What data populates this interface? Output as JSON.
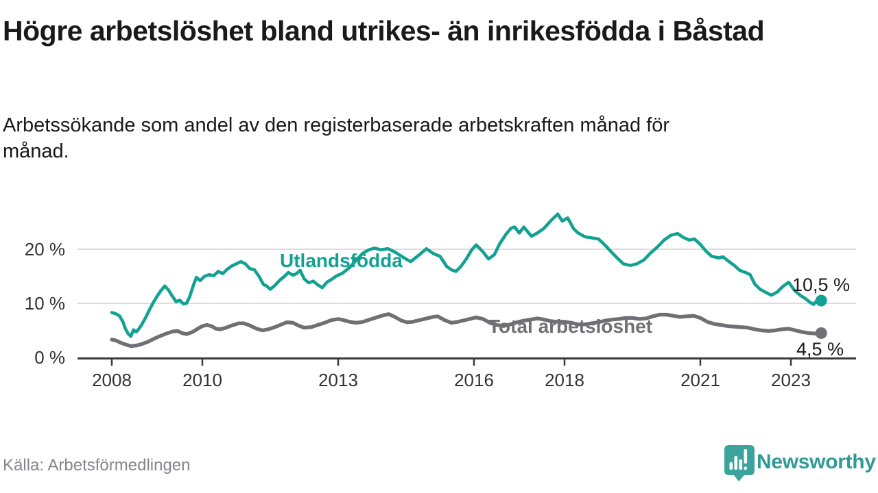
{
  "header": {
    "title": "Högre arbetslöshet bland utrikes- än inrikesfödda i Båstad",
    "subtitle": "Arbetssökande som andel av den registerbaserade arbetskraften månad för månad."
  },
  "footer": {
    "source": "Källa: Arbetsförmedlingen",
    "brand": "Newsworthy"
  },
  "colors": {
    "series_utlandsfodda": "#12a192",
    "series_total": "#6f6f74",
    "gridline": "#dcdcdc",
    "axis": "#3a3a3a",
    "tick_text": "#333333",
    "end_label_text": "#1a1a1a",
    "logo_bubble": "#3aa39c",
    "brand_text": "#2f9a96",
    "source_text": "#85858c"
  },
  "chart_data": {
    "type": "line",
    "title": "Högre arbetslöshet bland utrikes- än inrikesfödda i Båstad",
    "subtitle": "Arbetssökande som andel av den registerbaserade arbetskraften månad för månad.",
    "xlabel": "",
    "ylabel": "",
    "y_unit": "%",
    "grid": "horizontal",
    "legend": "inline-labels",
    "xlim": [
      2008,
      2023.9
    ],
    "ylim": [
      0,
      28
    ],
    "x_ticks": [
      2008,
      2010,
      2013,
      2016,
      2018,
      2021,
      2023
    ],
    "y_ticks": [
      {
        "value": 0,
        "label": "0 %"
      },
      {
        "value": 10,
        "label": "10 %"
      },
      {
        "value": 20,
        "label": "20 %"
      }
    ],
    "series": [
      {
        "name": "Utlandsfödda",
        "color": "#12a192",
        "end_label": "10,5 %",
        "end_value": 10.5,
        "points": [
          [
            2008.0,
            8.3
          ],
          [
            2008.08,
            8.1
          ],
          [
            2008.17,
            7.7
          ],
          [
            2008.25,
            6.5
          ],
          [
            2008.3,
            5.3
          ],
          [
            2008.36,
            4.4
          ],
          [
            2008.42,
            3.9
          ],
          [
            2008.48,
            5.1
          ],
          [
            2008.54,
            4.7
          ],
          [
            2008.6,
            5.3
          ],
          [
            2008.67,
            6.2
          ],
          [
            2008.75,
            7.4
          ],
          [
            2008.83,
            8.8
          ],
          [
            2008.92,
            10.2
          ],
          [
            2009.0,
            11.3
          ],
          [
            2009.08,
            12.3
          ],
          [
            2009.17,
            13.2
          ],
          [
            2009.25,
            12.5
          ],
          [
            2009.33,
            11.4
          ],
          [
            2009.42,
            10.3
          ],
          [
            2009.5,
            10.6
          ],
          [
            2009.58,
            9.9
          ],
          [
            2009.65,
            10.0
          ],
          [
            2009.72,
            11.2
          ],
          [
            2009.8,
            13.3
          ],
          [
            2009.87,
            14.8
          ],
          [
            2009.95,
            14.2
          ],
          [
            2010.05,
            15.0
          ],
          [
            2010.15,
            15.3
          ],
          [
            2010.25,
            15.1
          ],
          [
            2010.35,
            15.9
          ],
          [
            2010.45,
            15.5
          ],
          [
            2010.55,
            16.3
          ],
          [
            2010.65,
            16.9
          ],
          [
            2010.75,
            17.3
          ],
          [
            2010.85,
            17.7
          ],
          [
            2010.95,
            17.3
          ],
          [
            2011.05,
            16.4
          ],
          [
            2011.15,
            16.2
          ],
          [
            2011.25,
            15.0
          ],
          [
            2011.35,
            13.5
          ],
          [
            2011.42,
            13.2
          ],
          [
            2011.5,
            12.6
          ],
          [
            2011.6,
            13.3
          ],
          [
            2011.7,
            14.2
          ],
          [
            2011.8,
            14.9
          ],
          [
            2011.9,
            15.7
          ],
          [
            2012.0,
            15.2
          ],
          [
            2012.08,
            15.5
          ],
          [
            2012.16,
            16.1
          ],
          [
            2012.25,
            14.5
          ],
          [
            2012.35,
            13.8
          ],
          [
            2012.45,
            14.1
          ],
          [
            2012.55,
            13.4
          ],
          [
            2012.65,
            12.9
          ],
          [
            2012.75,
            13.9
          ],
          [
            2012.85,
            14.4
          ],
          [
            2012.95,
            15.0
          ],
          [
            2013.1,
            15.6
          ],
          [
            2013.25,
            16.6
          ],
          [
            2013.4,
            18.0
          ],
          [
            2013.55,
            19.3
          ],
          [
            2013.68,
            19.9
          ],
          [
            2013.8,
            20.2
          ],
          [
            2013.95,
            19.9
          ],
          [
            2014.1,
            20.1
          ],
          [
            2014.25,
            19.5
          ],
          [
            2014.42,
            18.6
          ],
          [
            2014.6,
            17.7
          ],
          [
            2014.78,
            18.9
          ],
          [
            2014.95,
            20.1
          ],
          [
            2015.1,
            19.2
          ],
          [
            2015.25,
            18.7
          ],
          [
            2015.4,
            16.8
          ],
          [
            2015.5,
            16.2
          ],
          [
            2015.6,
            15.9
          ],
          [
            2015.7,
            16.7
          ],
          [
            2015.83,
            18.2
          ],
          [
            2015.95,
            19.9
          ],
          [
            2016.05,
            20.8
          ],
          [
            2016.2,
            19.5
          ],
          [
            2016.32,
            18.2
          ],
          [
            2016.45,
            19.0
          ],
          [
            2016.56,
            20.9
          ],
          [
            2016.7,
            22.7
          ],
          [
            2016.82,
            23.9
          ],
          [
            2016.9,
            24.1
          ],
          [
            2017.0,
            23.0
          ],
          [
            2017.1,
            24.1
          ],
          [
            2017.27,
            22.4
          ],
          [
            2017.4,
            23.0
          ],
          [
            2017.55,
            23.9
          ],
          [
            2017.7,
            25.3
          ],
          [
            2017.85,
            26.5
          ],
          [
            2017.95,
            25.2
          ],
          [
            2018.07,
            25.8
          ],
          [
            2018.2,
            23.8
          ],
          [
            2018.3,
            23.0
          ],
          [
            2018.45,
            22.3
          ],
          [
            2018.6,
            22.1
          ],
          [
            2018.75,
            21.9
          ],
          [
            2018.9,
            20.7
          ],
          [
            2019.0,
            19.8
          ],
          [
            2019.15,
            18.5
          ],
          [
            2019.3,
            17.3
          ],
          [
            2019.45,
            17.0
          ],
          [
            2019.6,
            17.3
          ],
          [
            2019.75,
            18.0
          ],
          [
            2019.9,
            19.3
          ],
          [
            2020.05,
            20.4
          ],
          [
            2020.2,
            21.7
          ],
          [
            2020.35,
            22.6
          ],
          [
            2020.5,
            22.9
          ],
          [
            2020.62,
            22.2
          ],
          [
            2020.75,
            21.7
          ],
          [
            2020.87,
            21.9
          ],
          [
            2021.0,
            20.9
          ],
          [
            2021.12,
            19.7
          ],
          [
            2021.25,
            18.7
          ],
          [
            2021.4,
            18.4
          ],
          [
            2021.5,
            18.6
          ],
          [
            2021.62,
            17.8
          ],
          [
            2021.75,
            17.0
          ],
          [
            2021.87,
            16.1
          ],
          [
            2022.0,
            15.7
          ],
          [
            2022.1,
            15.3
          ],
          [
            2022.2,
            13.6
          ],
          [
            2022.32,
            12.6
          ],
          [
            2022.45,
            12.0
          ],
          [
            2022.57,
            11.5
          ],
          [
            2022.7,
            12.1
          ],
          [
            2022.82,
            13.1
          ],
          [
            2022.95,
            13.9
          ],
          [
            2023.08,
            12.4
          ],
          [
            2023.2,
            11.5
          ],
          [
            2023.3,
            11.0
          ],
          [
            2023.42,
            10.2
          ],
          [
            2023.5,
            9.8
          ],
          [
            2023.58,
            10.6
          ],
          [
            2023.67,
            10.5
          ]
        ]
      },
      {
        "name": "Total arbetslöshet",
        "color": "#6f6f74",
        "end_label": "4,5 %",
        "end_value": 4.5,
        "points": [
          [
            2008.0,
            3.3
          ],
          [
            2008.1,
            3.1
          ],
          [
            2008.2,
            2.7
          ],
          [
            2008.3,
            2.4
          ],
          [
            2008.42,
            2.1
          ],
          [
            2008.55,
            2.2
          ],
          [
            2008.67,
            2.5
          ],
          [
            2008.8,
            2.9
          ],
          [
            2008.92,
            3.4
          ],
          [
            2009.05,
            3.9
          ],
          [
            2009.2,
            4.4
          ],
          [
            2009.35,
            4.8
          ],
          [
            2009.45,
            4.9
          ],
          [
            2009.55,
            4.5
          ],
          [
            2009.65,
            4.3
          ],
          [
            2009.78,
            4.7
          ],
          [
            2009.9,
            5.3
          ],
          [
            2010.0,
            5.8
          ],
          [
            2010.1,
            6.0
          ],
          [
            2010.2,
            5.8
          ],
          [
            2010.3,
            5.3
          ],
          [
            2010.4,
            5.2
          ],
          [
            2010.52,
            5.5
          ],
          [
            2010.65,
            5.9
          ],
          [
            2010.8,
            6.3
          ],
          [
            2010.92,
            6.3
          ],
          [
            2011.05,
            5.9
          ],
          [
            2011.2,
            5.3
          ],
          [
            2011.33,
            5.0
          ],
          [
            2011.45,
            5.2
          ],
          [
            2011.6,
            5.6
          ],
          [
            2011.75,
            6.1
          ],
          [
            2011.87,
            6.5
          ],
          [
            2012.0,
            6.4
          ],
          [
            2012.12,
            5.9
          ],
          [
            2012.25,
            5.5
          ],
          [
            2012.4,
            5.6
          ],
          [
            2012.55,
            6.0
          ],
          [
            2012.7,
            6.4
          ],
          [
            2012.85,
            6.9
          ],
          [
            2013.0,
            7.1
          ],
          [
            2013.12,
            6.9
          ],
          [
            2013.25,
            6.6
          ],
          [
            2013.4,
            6.4
          ],
          [
            2013.55,
            6.6
          ],
          [
            2013.7,
            7.0
          ],
          [
            2013.85,
            7.4
          ],
          [
            2014.0,
            7.8
          ],
          [
            2014.12,
            8.0
          ],
          [
            2014.25,
            7.5
          ],
          [
            2014.4,
            6.8
          ],
          [
            2014.52,
            6.5
          ],
          [
            2014.65,
            6.6
          ],
          [
            2014.8,
            6.9
          ],
          [
            2014.95,
            7.2
          ],
          [
            2015.1,
            7.5
          ],
          [
            2015.2,
            7.6
          ],
          [
            2015.35,
            6.9
          ],
          [
            2015.5,
            6.4
          ],
          [
            2015.65,
            6.6
          ],
          [
            2015.8,
            6.9
          ],
          [
            2015.95,
            7.2
          ],
          [
            2016.05,
            7.4
          ],
          [
            2016.2,
            7.1
          ],
          [
            2016.35,
            6.4
          ],
          [
            2016.5,
            6.0
          ],
          [
            2016.65,
            5.8
          ],
          [
            2016.8,
            6.1
          ],
          [
            2016.95,
            6.5
          ],
          [
            2017.1,
            6.8
          ],
          [
            2017.25,
            7.0
          ],
          [
            2017.4,
            7.2
          ],
          [
            2017.55,
            7.0
          ],
          [
            2017.7,
            6.7
          ],
          [
            2017.85,
            6.6
          ],
          [
            2018.0,
            6.6
          ],
          [
            2018.15,
            6.4
          ],
          [
            2018.3,
            6.1
          ],
          [
            2018.45,
            6.1
          ],
          [
            2018.6,
            6.3
          ],
          [
            2018.75,
            6.5
          ],
          [
            2018.9,
            6.8
          ],
          [
            2019.05,
            7.0
          ],
          [
            2019.2,
            7.1
          ],
          [
            2019.35,
            7.3
          ],
          [
            2019.5,
            7.3
          ],
          [
            2019.65,
            7.1
          ],
          [
            2019.8,
            7.2
          ],
          [
            2019.95,
            7.6
          ],
          [
            2020.1,
            7.9
          ],
          [
            2020.25,
            7.9
          ],
          [
            2020.4,
            7.7
          ],
          [
            2020.55,
            7.5
          ],
          [
            2020.7,
            7.6
          ],
          [
            2020.85,
            7.7
          ],
          [
            2021.0,
            7.3
          ],
          [
            2021.15,
            6.6
          ],
          [
            2021.3,
            6.2
          ],
          [
            2021.45,
            6.0
          ],
          [
            2021.6,
            5.8
          ],
          [
            2021.75,
            5.7
          ],
          [
            2021.9,
            5.6
          ],
          [
            2022.05,
            5.5
          ],
          [
            2022.2,
            5.2
          ],
          [
            2022.35,
            5.0
          ],
          [
            2022.5,
            4.9
          ],
          [
            2022.65,
            5.0
          ],
          [
            2022.8,
            5.2
          ],
          [
            2022.95,
            5.3
          ],
          [
            2023.1,
            5.0
          ],
          [
            2023.25,
            4.7
          ],
          [
            2023.4,
            4.5
          ],
          [
            2023.55,
            4.4
          ],
          [
            2023.67,
            4.5
          ]
        ]
      }
    ]
  }
}
